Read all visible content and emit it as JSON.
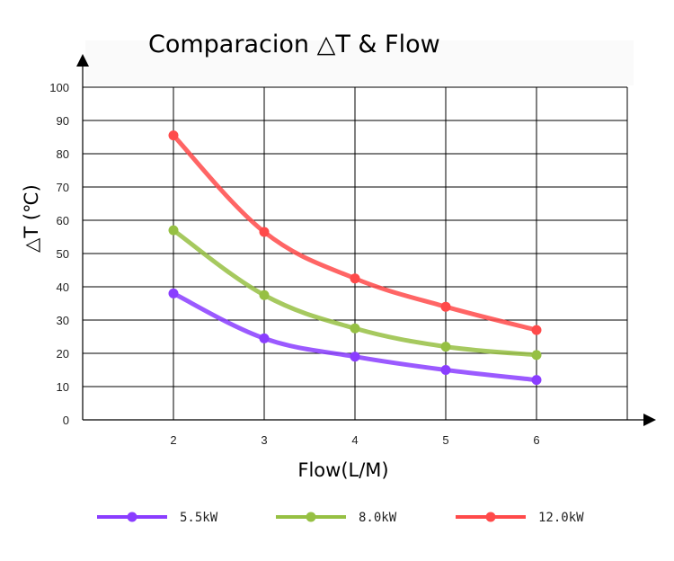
{
  "chart_data": {
    "type": "line",
    "title": "Comparacion  △T  & Flow",
    "xlabel": "Flow(L/M)",
    "ylabel": "△T  (℃)",
    "categories": [
      "2",
      "3",
      "4",
      "5",
      "6"
    ],
    "x": [
      2,
      3,
      4,
      5,
      6
    ],
    "xlim": [
      1,
      7
    ],
    "ylim": [
      0,
      100
    ],
    "yticks": [
      0,
      10,
      20,
      30,
      40,
      50,
      60,
      70,
      80,
      90,
      100
    ],
    "grid": true,
    "legend_position": "bottom",
    "series": [
      {
        "name": "5.5kW",
        "color": "#8a3dff",
        "values": [
          38,
          24.5,
          19,
          15,
          12
        ]
      },
      {
        "name": "8.0kW",
        "color": "#96c043",
        "values": [
          57,
          37.5,
          27.5,
          22,
          19.5
        ]
      },
      {
        "name": "12.0kW",
        "color": "#ff4a4a",
        "values": [
          85.5,
          56.5,
          42.5,
          34,
          27
        ]
      }
    ]
  }
}
